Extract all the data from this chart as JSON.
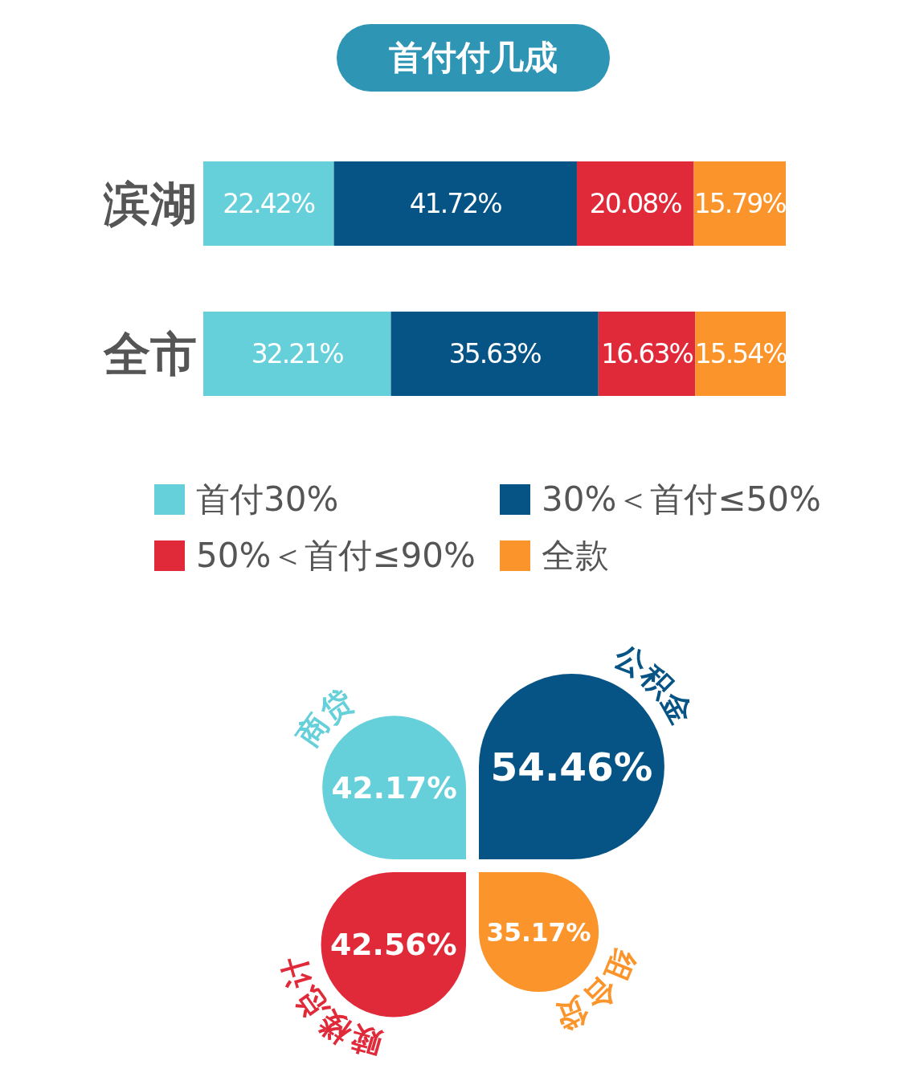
{
  "chart_data": [
    {
      "type": "bar",
      "title": "首付付几成",
      "orientation": "horizontal",
      "stacked": true,
      "categories": [
        "滨湖",
        "全市"
      ],
      "legend": "bottom",
      "series": [
        {
          "name": "首付30%",
          "color": "#65d0da",
          "values": [
            22.42,
            32.21
          ],
          "value_labels": [
            "22.42%",
            "32.21%"
          ]
        },
        {
          "name": "30%＜首付≤50%",
          "color": "#065485",
          "values": [
            41.72,
            35.63
          ],
          "value_labels": [
            "41.72%",
            "35.63%"
          ]
        },
        {
          "name": "50%＜首付≤90%",
          "color": "#e02a3a",
          "values": [
            20.08,
            16.63
          ],
          "value_labels": [
            "20.08%",
            "16.63%"
          ]
        },
        {
          "name": "全款",
          "color": "#fb952b",
          "values": [
            15.79,
            15.54
          ],
          "value_labels": [
            "15.79%",
            "15.54%"
          ]
        }
      ]
    },
    {
      "type": "other",
      "categories": [
        "商贷",
        "公积金",
        "赎楼总计",
        "组合贷"
      ],
      "values": [
        42.17,
        54.46,
        42.56,
        35.17
      ],
      "value_labels": [
        "42.17%",
        "54.46%",
        "42.56%",
        "35.17%"
      ],
      "colors": [
        "#65d0da",
        "#065485",
        "#e02a3a",
        "#fb952b"
      ]
    }
  ]
}
